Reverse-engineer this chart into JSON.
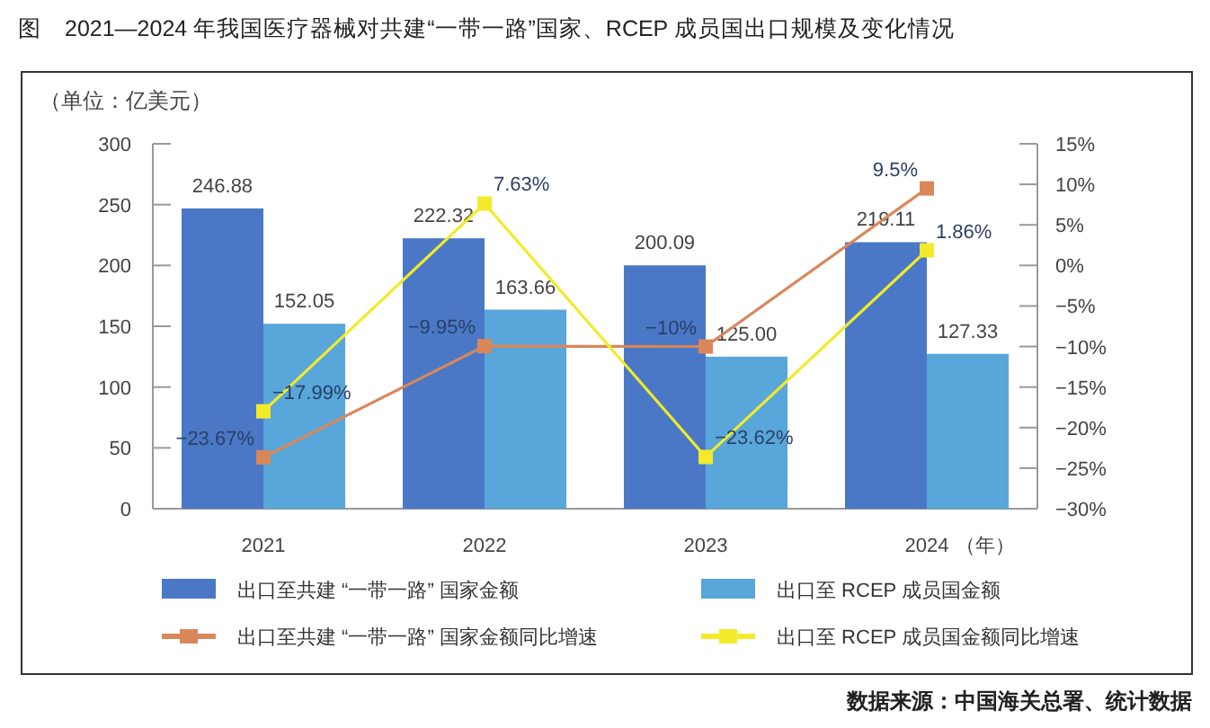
{
  "chart_data": {
    "type": "bar",
    "title": "图　2021—2024 年我国医疗器械对共建“一带一路”国家、RCEP 成员国出口规模及变化情况",
    "ylabel": "（单位：亿美元）",
    "xlabel": "（年）",
    "annotations": [
      "数据来源：中国海关总署、统计数据"
    ],
    "categories": [
      "2021",
      "2022",
      "2023",
      "2024"
    ],
    "series": [
      {
        "name": "出口至共建 “一带一路” 国家金额",
        "color": "#4a78c6",
        "values": [
          246.88,
          222.32,
          200.09,
          219.11
        ],
        "value_labels": [
          "246.88",
          "222.32",
          "200.09",
          "219.11"
        ]
      },
      {
        "name": "出口至 RCEP 成员国金额",
        "color": "#58a6da",
        "values": [
          152.05,
          163.66,
          125.0,
          127.33
        ],
        "value_labels": [
          "152.05",
          "163.66",
          "125.00",
          "127.33"
        ]
      },
      {
        "name": "出口至共建 “一带一路” 国家金额同比增速",
        "type": "line",
        "axis": "y2",
        "color": "#d9875a",
        "values": [
          -23.67,
          -9.95,
          -10,
          9.5
        ],
        "value_labels": [
          "−23.67%",
          "−9.95%",
          "−10%",
          "9.5%"
        ]
      },
      {
        "name": "出口至 RCEP 成员国金额同比增速",
        "type": "line",
        "axis": "y2",
        "color": "#f2ea2a",
        "values": [
          -17.99,
          7.63,
          -23.62,
          1.86
        ],
        "value_labels": [
          "−17.99%",
          "7.63%",
          "−23.62%",
          "1.86%"
        ]
      }
    ],
    "ylim": [
      0,
      300
    ],
    "yticks": [
      0,
      50,
      100,
      150,
      200,
      250,
      300
    ],
    "y2lim": [
      -30,
      15
    ],
    "y2ticks": [
      {
        "value": -30,
        "label": "−30%"
      },
      {
        "value": -25,
        "label": "−25%"
      },
      {
        "value": -20,
        "label": "−20%"
      },
      {
        "value": -15,
        "label": "−15%"
      },
      {
        "value": -10,
        "label": "−10%"
      },
      {
        "value": -5,
        "label": "−5%"
      },
      {
        "value": 0,
        "label": "0%"
      },
      {
        "value": 5,
        "label": "5%"
      },
      {
        "value": 10,
        "label": "10%"
      },
      {
        "value": 15,
        "label": "15%"
      }
    ],
    "marker": "square",
    "legend": "bottom"
  }
}
